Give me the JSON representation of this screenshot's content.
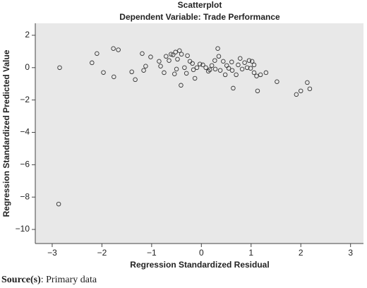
{
  "chart_data": {
    "type": "scatter",
    "title": "Scatterplot",
    "subtitle": "Dependent Variable: Trade Performance",
    "x_label": "Regression Standardized Residual",
    "y_label": "Regression Standardized Predicted Value",
    "source_label": "Source(s)",
    "source_text": ": Primary data",
    "color": "#333333",
    "background": "#e8e8e8",
    "xlim": [
      -3.34,
      3.26
    ],
    "ylim": [
      -10.87,
      2.74
    ],
    "xticks": [
      {
        "value": -3,
        "label": "−3"
      },
      {
        "value": -2,
        "label": "−2"
      },
      {
        "value": -1,
        "label": "−1"
      },
      0,
      1,
      2,
      3
    ],
    "yticks": [
      2,
      0,
      {
        "value": -2,
        "label": "−2"
      },
      {
        "value": -4,
        "label": "−4"
      },
      {
        "value": -6,
        "label": "−6"
      },
      {
        "value": -8,
        "label": "−8"
      },
      {
        "value": -10,
        "label": "−10"
      }
    ],
    "x": [
      -2.85,
      -2.87,
      -2.2,
      -2.1,
      -1.97,
      -1.77,
      -1.67,
      -1.76,
      -1.4,
      -1.33,
      -1.19,
      -1.16,
      -1.12,
      -1.02,
      -0.85,
      -0.82,
      -0.75,
      -0.71,
      -0.65,
      -0.61,
      -0.57,
      -0.52,
      -0.5,
      -0.54,
      -0.44,
      -0.4,
      -0.48,
      -0.41,
      -0.34,
      -0.3,
      -0.28,
      -0.23,
      -0.18,
      -0.16,
      -0.13,
      -0.09,
      -0.03,
      0.03,
      0.09,
      0.14,
      0.17,
      0.21,
      0.27,
      0.28,
      0.33,
      0.35,
      0.38,
      0.44,
      0.48,
      0.51,
      0.55,
      0.61,
      0.62,
      0.64,
      0.7,
      0.74,
      0.78,
      0.82,
      0.87,
      0.92,
      0.96,
      0.99,
      1.02,
      1.06,
      1.06,
      1.11,
      1.13,
      1.19,
      1.3,
      1.52,
      1.91,
      2.0,
      2.13,
      2.18
    ],
    "y": [
      0,
      -8.43,
      0.3,
      0.87,
      -0.3,
      1.18,
      1.1,
      -0.57,
      -0.26,
      -0.74,
      0.87,
      -0.17,
      0.09,
      0.66,
      0.39,
      0.09,
      -0.31,
      0.7,
      0.44,
      0.83,
      0.79,
      0.96,
      -0.09,
      -0.39,
      1.05,
      0.83,
      0.52,
      -1.09,
      0,
      -0.35,
      0.74,
      0.39,
      0.26,
      -0.13,
      -0.66,
      0,
      0.22,
      0.17,
      0,
      -0.22,
      -0.13,
      0.13,
      0.44,
      -0.09,
      1.18,
      0.7,
      -0.17,
      0.39,
      -0.44,
      0.13,
      -0.04,
      0.35,
      -0.17,
      -1.27,
      -0.44,
      0.17,
      0.57,
      -0.09,
      0.31,
      0,
      0.44,
      -0.04,
      0.39,
      0.17,
      -0.31,
      -0.52,
      -1.44,
      -0.44,
      -0.31,
      -0.87,
      -1.66,
      -1.44,
      -0.92,
      -1.31
    ]
  }
}
